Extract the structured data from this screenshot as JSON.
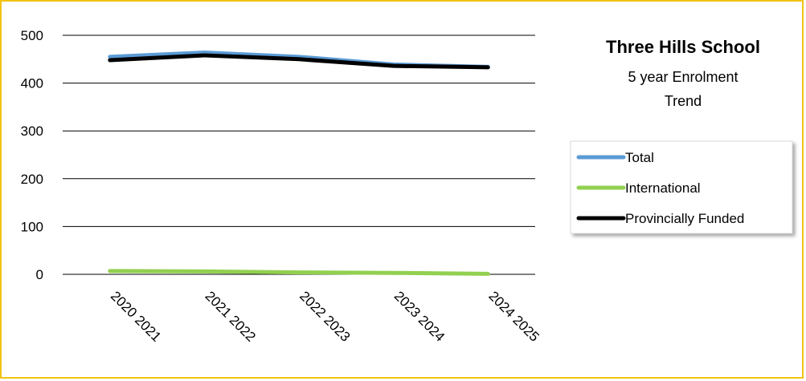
{
  "chart_data": {
    "type": "line",
    "title": "Three Hills School",
    "subtitle_lines": [
      "5 year Enrolment",
      "Trend"
    ],
    "categories": [
      "2020 2021",
      "2021 2022",
      "2022 2023",
      "2023 2024",
      "2024 2025"
    ],
    "ylim": [
      0,
      500
    ],
    "yticks": [
      "0",
      "100",
      "200",
      "300",
      "400",
      "500"
    ],
    "grid": true,
    "legend_position": "right",
    "series": [
      {
        "name": "Total",
        "color": "#5b9bd5",
        "values": [
          455,
          464,
          455,
          439,
          434
        ]
      },
      {
        "name": "International",
        "color": "#92d050",
        "values": [
          7,
          6,
          4,
          3,
          1
        ]
      },
      {
        "name": "Provincially Funded",
        "color": "#000000",
        "values": [
          448,
          458,
          450,
          436,
          433
        ]
      }
    ]
  },
  "frame_color": "#f2c314"
}
